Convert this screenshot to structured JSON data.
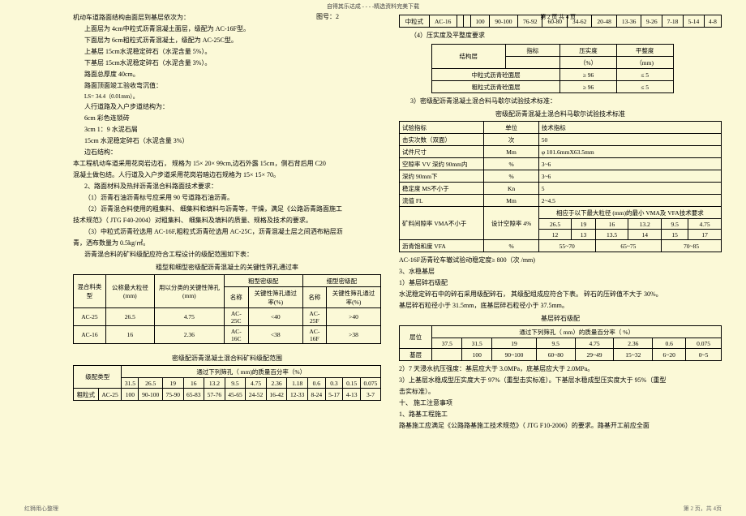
{
  "headerTop": "自得其乐达成 - - - -精选资料完美下载",
  "pageHeader": "第 2 页 共 4 页",
  "figLabel": "图号：2",
  "left": {
    "title": "机动车道路面结构由面层到基层依次为：",
    "lines": [
      "上面层为  4cm中粒式沥青混凝土面层，级配为    AC-16F型。",
      "下面层为  6cm粗粒式沥青混凝土，级配为    AC-25C型。",
      "上基层  15cm水泥稳定碎石（水泥含量    5%）。",
      "下基层  15cm水泥稳定碎石（水泥含量    3%）。",
      "路面总厚度  40cm。",
      "路面顶面竣工验收弯沉值：",
      "LS= 34.4（0.01mm）。",
      "人行道路及入户步道结构为：",
      "6cm 彩色连锁砖",
      "3cm 1：9 水泥石屑",
      "15cm 水泥稳定碎石（水泥含量    3%）",
      "边石结构：",
      "    本工程机动车道采用花岗岩边石，  规格为 15× 20× 99cm,边石外露  15cm，侧石背后用  C20",
      "混凝土做包结。人行道及入户步道采用花岗岩暗边石规格为      15× 15× 70。",
      "2、路面材料及热拌沥青混合料路面技术要求：",
      "（1）沥青石油沥青标号应采用    90 号道路石油沥青。",
      "（2）沥青混合料使用的粗集料、  细集料和填料与沥青等，干燥，满足《公路沥青路面施工",
      "技术规范》（ JTG F40-2004）对粗集料、  细集料及填料的质量、规格及技术的要求。",
      "（3）中粒式沥青砼选用  AC-16F,粗粒式沥青砼选用  AC-25C，沥青混凝土层之间洒布粘层沥",
      "青，洒布数量为  0.5kg/㎡。",
      "沥青混合料的矿料级配应符合工程设计的级配范围如下表："
    ],
    "tbl1Title": "粗型和细型密级配沥青混凝土的关键性筛孔通过率",
    "tbl1": {
      "headers": [
        "混合料类型",
        "公称最大粒径(mm)",
        "用以分类的关键性筛孔 (mm)",
        "粗型密级配",
        "细型密级配"
      ],
      "subheaders": [
        "名称",
        "关键性筛孔通过率(%)",
        "名称",
        "关键性筛孔通过率(%)"
      ],
      "rows": [
        [
          "AC-25",
          "26.5",
          "4.75",
          "AC-25C",
          "<40",
          "AC-25F",
          ">40"
        ],
        [
          "AC-16",
          "16",
          "2.36",
          "AC-16C",
          "<38",
          "AC-16F",
          ">38"
        ]
      ]
    },
    "tbl2Title": "密级配沥青混凝土混合料矿料级配范围",
    "tbl2": {
      "header": "通过下列筛孔（ mm)的质量百分率（%）",
      "cols": [
        "31.5",
        "26.5",
        "19",
        "16",
        "13.2",
        "9.5",
        "4.75",
        "2.36",
        "1.18",
        "0.6",
        "0.3",
        "0.15",
        "0.075"
      ],
      "row": [
        "粗粒式",
        "AC-25",
        "100",
        "90-100",
        "75-90",
        "65-83",
        "57-76",
        "45-65",
        "24-52",
        "16-42",
        "12-33",
        "8-24",
        "5-17",
        "4-13",
        "3-7"
      ]
    }
  },
  "right": {
    "tbl0": {
      "row": [
        "中粒式",
        "AC-16",
        "",
        "",
        "100",
        "90-100",
        "76-92",
        "60-80",
        "34-62",
        "20-48",
        "13-36",
        "9-26",
        "7-18",
        "5-14",
        "4-8"
      ]
    },
    "sec4": "（4）压实度及平整度要求",
    "tbl3": {
      "headers": [
        "结构层",
        "指标",
        "压实度（%）",
        "平整度（mm)"
      ],
      "rows": [
        [
          "中粒式沥青砼面层",
          "≥ 96",
          "≤ 5"
        ],
        [
          "粗粒式沥青砼面层",
          "≥ 96",
          "≤ 5"
        ]
      ]
    },
    "sec3title": "3）密级配沥青混凝土混合料马歇尔试验技术标准：",
    "tbl4Title": "密级配沥青混凝土混合料马歇尔试验技术标准",
    "tbl4": {
      "rows": [
        [
          "试验指标",
          "单位",
          "技术指标"
        ],
        [
          "击实次数（双面）",
          "次",
          "50"
        ],
        [
          "试件尺寸",
          "Mm",
          "φ 101.6mmX63.5mm"
        ],
        [
          "空隙率  VV   深约  90mm内",
          "%",
          "3~6"
        ],
        [
          "                深约  90mm下",
          "%",
          "3~6"
        ],
        [
          "稳定度  MS不小于",
          "Kn",
          "5"
        ],
        [
          "流值  FL",
          "Mm",
          "2~4.5"
        ]
      ],
      "vma": {
        "label": "矿料间隙率  VMA不小于",
        "sublabel": "设计空隙率 4%",
        "header": "相应于以下最大粒径  (mm)的最小  VMA及 VFA技术要求",
        "cols": [
          "26.5",
          "19",
          "16",
          "13.2",
          "9.5",
          "4.75"
        ],
        "vals": [
          "12",
          "13",
          "13.5",
          "14",
          "15",
          "17"
        ]
      },
      "vfa": [
        "沥青饱和度  VFA",
        "%",
        "55~70",
        "65~75",
        "70~85"
      ]
    },
    "lines1": [
      "AC-16F沥青砼车辙试验动稳定度≥    800（次 /mm)",
      "3、水稳基层",
      "  1）基层碎石级配",
      "    水泥稳定碎石中的碎石采用级配碎石，  其级配组成应符合下表。  碎石的压碎值不大于  30%。",
      "基层碎石粒径小于  31.5mm，底基层碎石粒径小于  37.5mm。"
    ],
    "tbl5Title": "基层碎石级配",
    "tbl5": {
      "header": "通过下列筛孔（  mm）的质量百分率（ %）",
      "cols": [
        "37.5",
        "31.5",
        "19",
        "9.5",
        "4.75",
        "2.36",
        "0.6",
        "0.075"
      ],
      "row": [
        "基层",
        "",
        "100",
        "90~100",
        "60~80",
        "29~49",
        "15~32",
        "6~20",
        "0~5"
      ]
    },
    "lines2": [
      "  2）7 天浸水抗压强度：基层应大于  3.0MPa，底基层应大于  2.0MPa。",
      "  3）上基层水稳成型压实度大于    97%（重型击实标准）。下基层水稳成型压实度大于    95%（重型",
      "击实标准）。",
      "十、  施工注意事项",
      "1、路基工程施工",
      "   路基施工应满足《公路路基施工技术规范》（    JTG F10-2006）的要求。路基开工前应全面"
    ]
  },
  "footerLeft": "红狮用心整理",
  "footerRight": "第 2 页，共 4页"
}
